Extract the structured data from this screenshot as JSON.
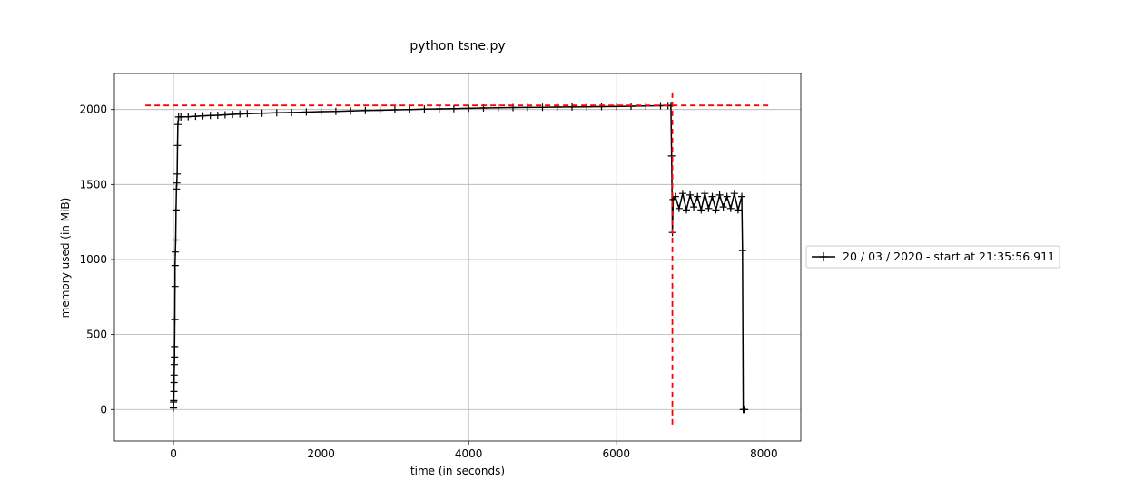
{
  "chart_data": {
    "type": "line",
    "title": "python tsne.py",
    "xlabel": "time (in seconds)",
    "ylabel": "memory used (in MiB)",
    "xlim": [
      -800,
      8500
    ],
    "ylim": [
      -210,
      2240
    ],
    "xticks": [
      0,
      2000,
      4000,
      6000,
      8000
    ],
    "yticks": [
      0,
      500,
      1000,
      1500,
      2000
    ],
    "grid": true,
    "legend_position": "right",
    "series": [
      {
        "name": "20 / 03 / 2020 - start at 21:35:56.911",
        "color": "#000000",
        "marker": "plus",
        "x": [
          0,
          2,
          4,
          6,
          8,
          10,
          12,
          14,
          16,
          18,
          20,
          22,
          25,
          30,
          35,
          40,
          45,
          50,
          55,
          60,
          70,
          100,
          200,
          300,
          400,
          500,
          600,
          700,
          800,
          900,
          1000,
          1200,
          1400,
          1600,
          1800,
          2000,
          2200,
          2400,
          2600,
          2800,
          3000,
          3200,
          3400,
          3600,
          3800,
          4000,
          4200,
          4400,
          4600,
          4800,
          5000,
          5200,
          5400,
          5600,
          5800,
          6000,
          6200,
          6400,
          6600,
          6700,
          6740,
          6750,
          6760,
          6770,
          6800,
          6850,
          6900,
          6950,
          7000,
          7050,
          7100,
          7150,
          7200,
          7250,
          7300,
          7350,
          7400,
          7450,
          7500,
          7550,
          7600,
          7650,
          7700,
          7710,
          7720,
          7730,
          7740
        ],
        "y": [
          10,
          50,
          60,
          120,
          180,
          230,
          300,
          350,
          420,
          600,
          820,
          960,
          1050,
          1130,
          1330,
          1470,
          1510,
          1570,
          1760,
          1900,
          1950,
          1950,
          1952,
          1955,
          1958,
          1960,
          1962,
          1965,
          1968,
          1970,
          1972,
          1975,
          1978,
          1980,
          1983,
          1986,
          1988,
          1990,
          1993,
          1995,
          1998,
          2000,
          2002,
          2004,
          2006,
          2008,
          2010,
          2012,
          2013,
          2014,
          2015,
          2016,
          2017,
          2018,
          2019,
          2020,
          2022,
          2024,
          2025,
          2026,
          2027,
          1690,
          1180,
          1400,
          1420,
          1340,
          1440,
          1330,
          1430,
          1350,
          1420,
          1330,
          1440,
          1340,
          1420,
          1330,
          1430,
          1350,
          1420,
          1340,
          1440,
          1330,
          1420,
          1060,
          0,
          0,
          0
        ]
      }
    ],
    "reference_lines": [
      {
        "orientation": "horizontal",
        "y": 2027,
        "x_range": [
          -380,
          8100
        ],
        "color": "#ff0000",
        "style": "dashed"
      },
      {
        "orientation": "vertical",
        "x": 6760,
        "y_range": [
          -100,
          2130
        ],
        "color": "#ff0000",
        "style": "dashed"
      }
    ]
  }
}
